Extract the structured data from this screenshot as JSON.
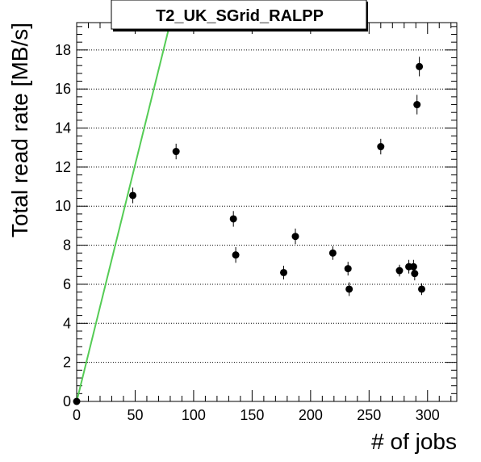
{
  "chart_data": {
    "type": "scatter",
    "title": "T2_UK_SGrid_RALPP",
    "xlabel": "# of jobs",
    "ylabel": "Total read rate [MB/s]",
    "xlim": [
      0,
      325
    ],
    "ylim": [
      0,
      19.4
    ],
    "x_ticks": [
      0,
      50,
      100,
      150,
      200,
      250,
      300
    ],
    "y_ticks": [
      0,
      2,
      4,
      6,
      8,
      10,
      12,
      14,
      16,
      18
    ],
    "grid": "horizontal dotted",
    "points": [
      {
        "x": 0,
        "y": 0.0,
        "err": 0.0
      },
      {
        "x": 48,
        "y": 10.55,
        "err": 0.4
      },
      {
        "x": 85,
        "y": 12.8,
        "err": 0.4
      },
      {
        "x": 134,
        "y": 9.35,
        "err": 0.4
      },
      {
        "x": 136,
        "y": 7.5,
        "err": 0.4
      },
      {
        "x": 177,
        "y": 6.6,
        "err": 0.35
      },
      {
        "x": 187,
        "y": 8.45,
        "err": 0.4
      },
      {
        "x": 219,
        "y": 7.6,
        "err": 0.35
      },
      {
        "x": 232,
        "y": 6.8,
        "err": 0.35
      },
      {
        "x": 233,
        "y": 5.75,
        "err": 0.35
      },
      {
        "x": 260,
        "y": 13.05,
        "err": 0.4
      },
      {
        "x": 276,
        "y": 6.7,
        "err": 0.3
      },
      {
        "x": 284,
        "y": 6.9,
        "err": 0.35
      },
      {
        "x": 288,
        "y": 6.9,
        "err": 0.35
      },
      {
        "x": 289,
        "y": 6.55,
        "err": 0.35
      },
      {
        "x": 291,
        "y": 15.2,
        "err": 0.5
      },
      {
        "x": 293,
        "y": 17.15,
        "err": 0.5
      },
      {
        "x": 295,
        "y": 5.75,
        "err": 0.3
      }
    ],
    "fit_line": {
      "x": [
        0,
        80
      ],
      "y": [
        0,
        19.4
      ],
      "color": "#55cc55"
    }
  }
}
